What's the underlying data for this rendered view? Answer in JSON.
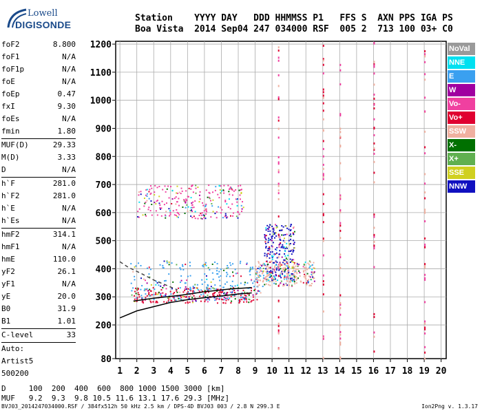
{
  "logo": {
    "line1": "Lowell",
    "line2": "DIGISONDE"
  },
  "header": {
    "line1": "Station    YYYY DAY   DDD HHMMSS P1   FFS S  AXN PPS IGA PS",
    "line2": "Boa Vista  2014 Sep04 247 034000 RSF  005 2  713 100 03+ C0"
  },
  "params": [
    {
      "key": "foF2",
      "value": "8.800"
    },
    {
      "key": "foF1",
      "value": "N/A"
    },
    {
      "key": "foF1p",
      "value": "N/A"
    },
    {
      "key": "foE",
      "value": "N/A"
    },
    {
      "key": "foEp",
      "value": "0.47"
    },
    {
      "key": "fxI",
      "value": "9.30"
    },
    {
      "key": "foEs",
      "value": "N/A"
    },
    {
      "key": "fmin",
      "value": "1.80"
    },
    {
      "key": "MUF(D)",
      "value": "29.33",
      "sep": true
    },
    {
      "key": "M(D)",
      "value": "3.33"
    },
    {
      "key": "D",
      "value": "N/A"
    },
    {
      "key": "h`F",
      "value": "281.0",
      "sep": true
    },
    {
      "key": "h`F2",
      "value": "281.0"
    },
    {
      "key": "h`E",
      "value": "N/A"
    },
    {
      "key": "h`Es",
      "value": "N/A"
    },
    {
      "key": "hmF2",
      "value": "314.1",
      "sep": true
    },
    {
      "key": "hmF1",
      "value": "N/A"
    },
    {
      "key": "hmE",
      "value": "110.0"
    },
    {
      "key": "yF2",
      "value": "26.1"
    },
    {
      "key": "yF1",
      "value": "N/A"
    },
    {
      "key": "yE",
      "value": "20.0"
    },
    {
      "key": "B0",
      "value": "31.9"
    },
    {
      "key": "B1",
      "value": "1.01"
    },
    {
      "key": "C-level",
      "value": "33",
      "sep": true
    }
  ],
  "auto": {
    "l1": "Auto:",
    "l2": "Artist5",
    "l3": "500200"
  },
  "legend": [
    {
      "label": "NoVal",
      "color": "#9a9a9a"
    },
    {
      "label": "NNE",
      "color": "#00e0f0"
    },
    {
      "label": "E",
      "color": "#3aa0f0"
    },
    {
      "label": "W",
      "color": "#a000a0"
    },
    {
      "label": "Vo-",
      "color": "#f040a0"
    },
    {
      "label": "Vo+",
      "color": "#e00030"
    },
    {
      "label": "SSW",
      "color": "#f0b0a0"
    },
    {
      "label": "X-",
      "color": "#007000"
    },
    {
      "label": "X+",
      "color": "#60b050"
    },
    {
      "label": "SSE",
      "color": "#d0d020"
    },
    {
      "label": "NNW",
      "color": "#1010c0"
    }
  ],
  "muf_table": {
    "line1": "D     100  200  400  600  800 1000 1500 3000 [km]",
    "line2": "MUF   9.2  9.3  9.8 10.5 11.6 13.1 17.6 29.3 [MHz]"
  },
  "footer": "BVJ03_2014247034000.RSF / 384fx512h 50 kHz 2.5 km / DPS-4D BVJ03 003 / 2.8 N 299.3 E",
  "version": "Ion2Png v. 1.3.17",
  "chart_data": {
    "type": "scatter",
    "x_ticks": [
      1,
      2,
      3,
      4,
      5,
      6,
      7,
      8,
      9,
      10,
      11,
      12,
      13,
      14,
      15,
      16,
      17,
      18,
      19,
      20
    ],
    "y_ticks": [
      80,
      200,
      300,
      400,
      500,
      600,
      700,
      800,
      900,
      1000,
      1100,
      1200
    ],
    "xlim": [
      0.75,
      20.3
    ],
    "ylim": [
      80,
      1210
    ],
    "grid": true,
    "clusters": [
      {
        "name": "F-trace o",
        "x": [
          1.8,
          9.2
        ],
        "y": [
          280,
          335
        ],
        "color": "#e00030"
      },
      {
        "name": "F-trace x",
        "x": [
          1.6,
          9.5
        ],
        "y": [
          290,
          430
        ],
        "color": "#3aa0f0"
      },
      {
        "name": "2nd hop",
        "x": [
          2.0,
          8.3
        ],
        "y": [
          580,
          700
        ],
        "color": "#f040a0"
      },
      {
        "name": "spread F",
        "x": [
          9.5,
          11.3
        ],
        "y": [
          360,
          560
        ],
        "color": "#1010c0"
      },
      {
        "name": "spread F2",
        "x": [
          9.0,
          12.5
        ],
        "y": [
          340,
          430
        ],
        "color": "#f0b0a0"
      }
    ],
    "profile_curve": {
      "x": [
        1.0,
        2.0,
        3.0,
        4.0,
        5.0,
        6.0,
        7.0,
        8.0,
        8.8
      ],
      "y": [
        225,
        250,
        265,
        280,
        290,
        297,
        303,
        310,
        314
      ]
    },
    "model_curve": {
      "x": [
        1.8,
        3.0,
        4.5,
        6.0,
        7.5,
        8.8
      ],
      "y": [
        285,
        295,
        305,
        318,
        328,
        333
      ]
    },
    "dashed_curve": {
      "x": [
        1.0,
        1.5,
        2.2,
        3.0,
        3.8,
        4.4
      ],
      "y": [
        425,
        405,
        385,
        360,
        340,
        325
      ]
    }
  }
}
